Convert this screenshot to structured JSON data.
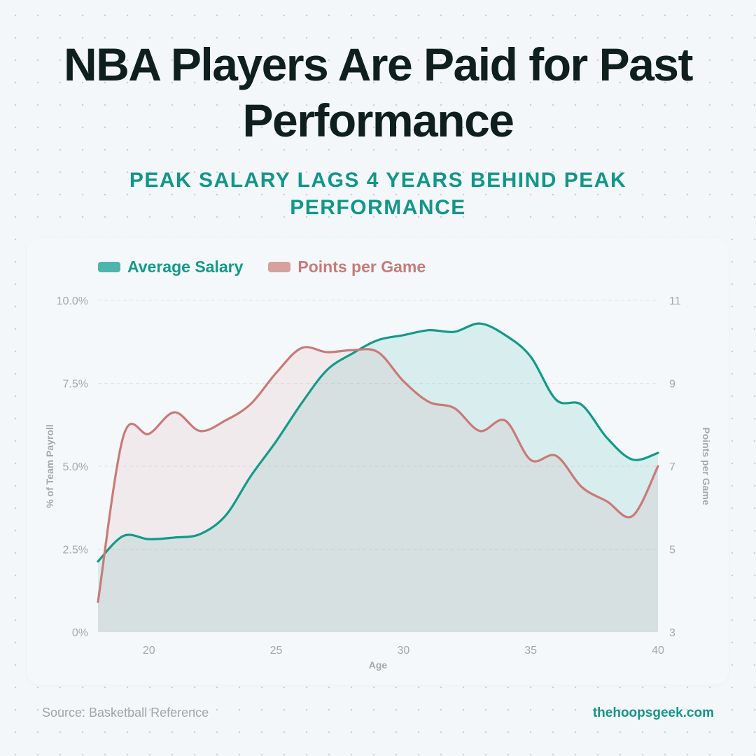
{
  "title": "NBA Players Are Paid for Past Performance",
  "subtitle": "PEAK SALARY LAGS 4 YEARS BEHIND PEAK PERFORMANCE",
  "source": "Source: Basketball Reference",
  "brand": "thehoopsgeek.com",
  "colors": {
    "salary": "#129a8a",
    "salary_legend": "#4db6ac",
    "ppg": "#c97a78",
    "ppg_legend": "#d6a09f"
  },
  "chart_data": {
    "type": "area",
    "title": "NBA Players Are Paid for Past Performance",
    "xlabel": "Age",
    "ylabel": "% of Team Payroll",
    "y2label": "Points per Game",
    "xlim": [
      18,
      40
    ],
    "ylim": [
      0,
      10
    ],
    "y2lim": [
      3,
      11
    ],
    "xticks": [
      20,
      25,
      30,
      35,
      40
    ],
    "yticks": [
      "0%",
      "2.5%",
      "5.0%",
      "7.5%",
      "10.0%"
    ],
    "ytick_values": [
      0,
      2.5,
      5,
      7.5,
      10
    ],
    "y2ticks": [
      3,
      5,
      7,
      9,
      11
    ],
    "grid": true,
    "legend_placement": "top-left",
    "x": [
      18,
      19,
      20,
      21,
      22,
      23,
      24,
      25,
      26,
      27,
      28,
      29,
      30,
      31,
      32,
      33,
      34,
      35,
      36,
      37,
      38,
      39,
      40
    ],
    "series": [
      {
        "name": "Average Salary",
        "axis": "left",
        "values": [
          2.13,
          2.9,
          2.8,
          2.85,
          2.95,
          3.5,
          4.7,
          5.75,
          6.9,
          7.9,
          8.4,
          8.8,
          8.95,
          9.1,
          9.05,
          9.3,
          8.95,
          8.3,
          7.0,
          6.85,
          5.85,
          5.2,
          5.4
        ]
      },
      {
        "name": "Points per Game",
        "axis": "right",
        "values": [
          3.73,
          7.73,
          7.78,
          8.3,
          7.85,
          8.1,
          8.5,
          9.25,
          9.85,
          9.75,
          9.8,
          9.75,
          9.05,
          8.55,
          8.4,
          7.85,
          8.1,
          7.15,
          7.25,
          6.5,
          6.15,
          5.8,
          7.0
        ]
      }
    ]
  }
}
